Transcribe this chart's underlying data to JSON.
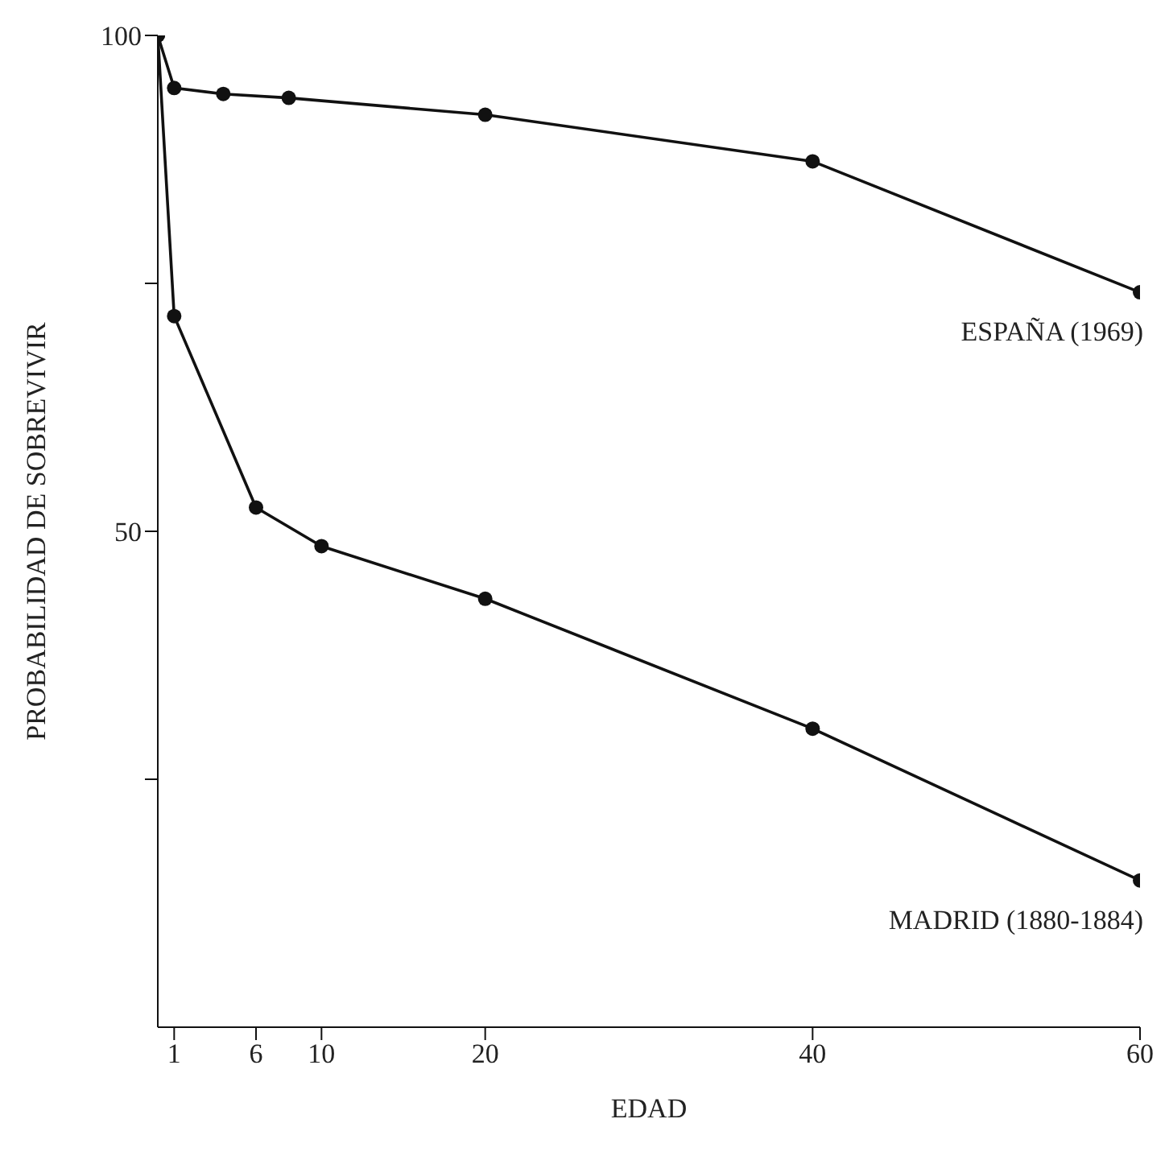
{
  "chart_data": {
    "type": "line",
    "xlabel": "EDAD",
    "ylabel": "PROBABILIDAD DE SOBREVIVIR",
    "xlim": [
      0,
      60
    ],
    "xticks": [
      1,
      6,
      10,
      20,
      40,
      60
    ],
    "ylim": [
      0,
      100
    ],
    "yticks": [
      {
        "value": 25,
        "label": null
      },
      50,
      {
        "value": 75,
        "label": null
      },
      100
    ],
    "series": [
      {
        "name": "ESPAÑA (1969)",
        "color": "#111111",
        "x": [
          0,
          1,
          4,
          8,
          20,
          40,
          60
        ],
        "values": [
          100,
          94.7,
          94.1,
          93.7,
          92.0,
          87.3,
          74.1
        ]
      },
      {
        "name": "MADRID (1880-1884)",
        "color": "#111111",
        "x": [
          0,
          1,
          6,
          10,
          20,
          40,
          60
        ],
        "values": [
          100,
          71.7,
          52.4,
          48.5,
          43.2,
          30.1,
          14.8
        ]
      }
    ],
    "marker": "circle",
    "line_style": "solid",
    "grid": false,
    "legend": false
  }
}
